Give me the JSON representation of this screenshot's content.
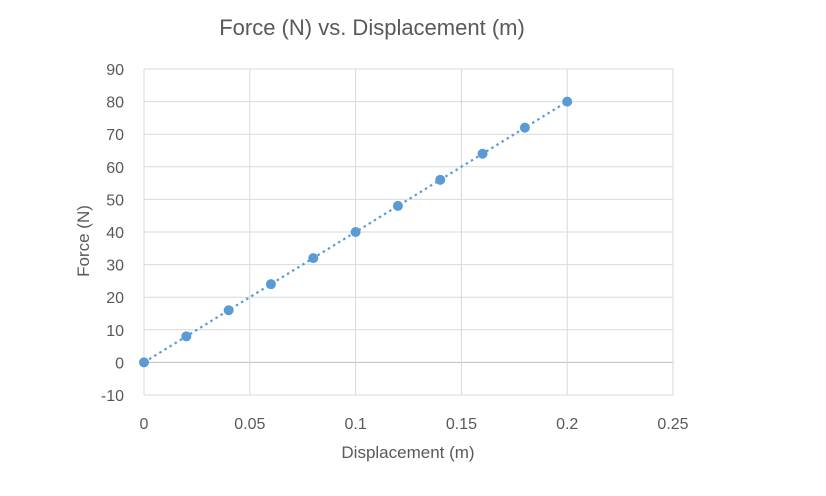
{
  "chart_data": {
    "type": "scatter",
    "title": "Force (N) vs. Displacement (m)",
    "xlabel": "Displacement (m)",
    "ylabel": "Force (N)",
    "xlim": [
      0,
      0.25
    ],
    "ylim": [
      -10,
      90
    ],
    "x_ticks": [
      0,
      0.05,
      0.1,
      0.15,
      0.2,
      0.25
    ],
    "x_tick_labels": [
      "0",
      "0.05",
      "0.1",
      "0.15",
      "0.2",
      "0.25"
    ],
    "y_ticks": [
      -10,
      0,
      10,
      20,
      30,
      40,
      50,
      60,
      70,
      80,
      90
    ],
    "y_tick_labels": [
      "-10",
      "0",
      "10",
      "20",
      "30",
      "40",
      "50",
      "60",
      "70",
      "80",
      "90"
    ],
    "grid": true,
    "legend": false,
    "series": [
      {
        "x": [
          0,
          0.02,
          0.04,
          0.06,
          0.08,
          0.1,
          0.12,
          0.14,
          0.16,
          0.18,
          0.2
        ],
        "y": [
          0,
          8,
          16,
          24,
          32,
          40,
          48,
          56,
          64,
          72,
          80
        ],
        "color": "#5b9bd5",
        "trendline": "linear"
      }
    ]
  }
}
